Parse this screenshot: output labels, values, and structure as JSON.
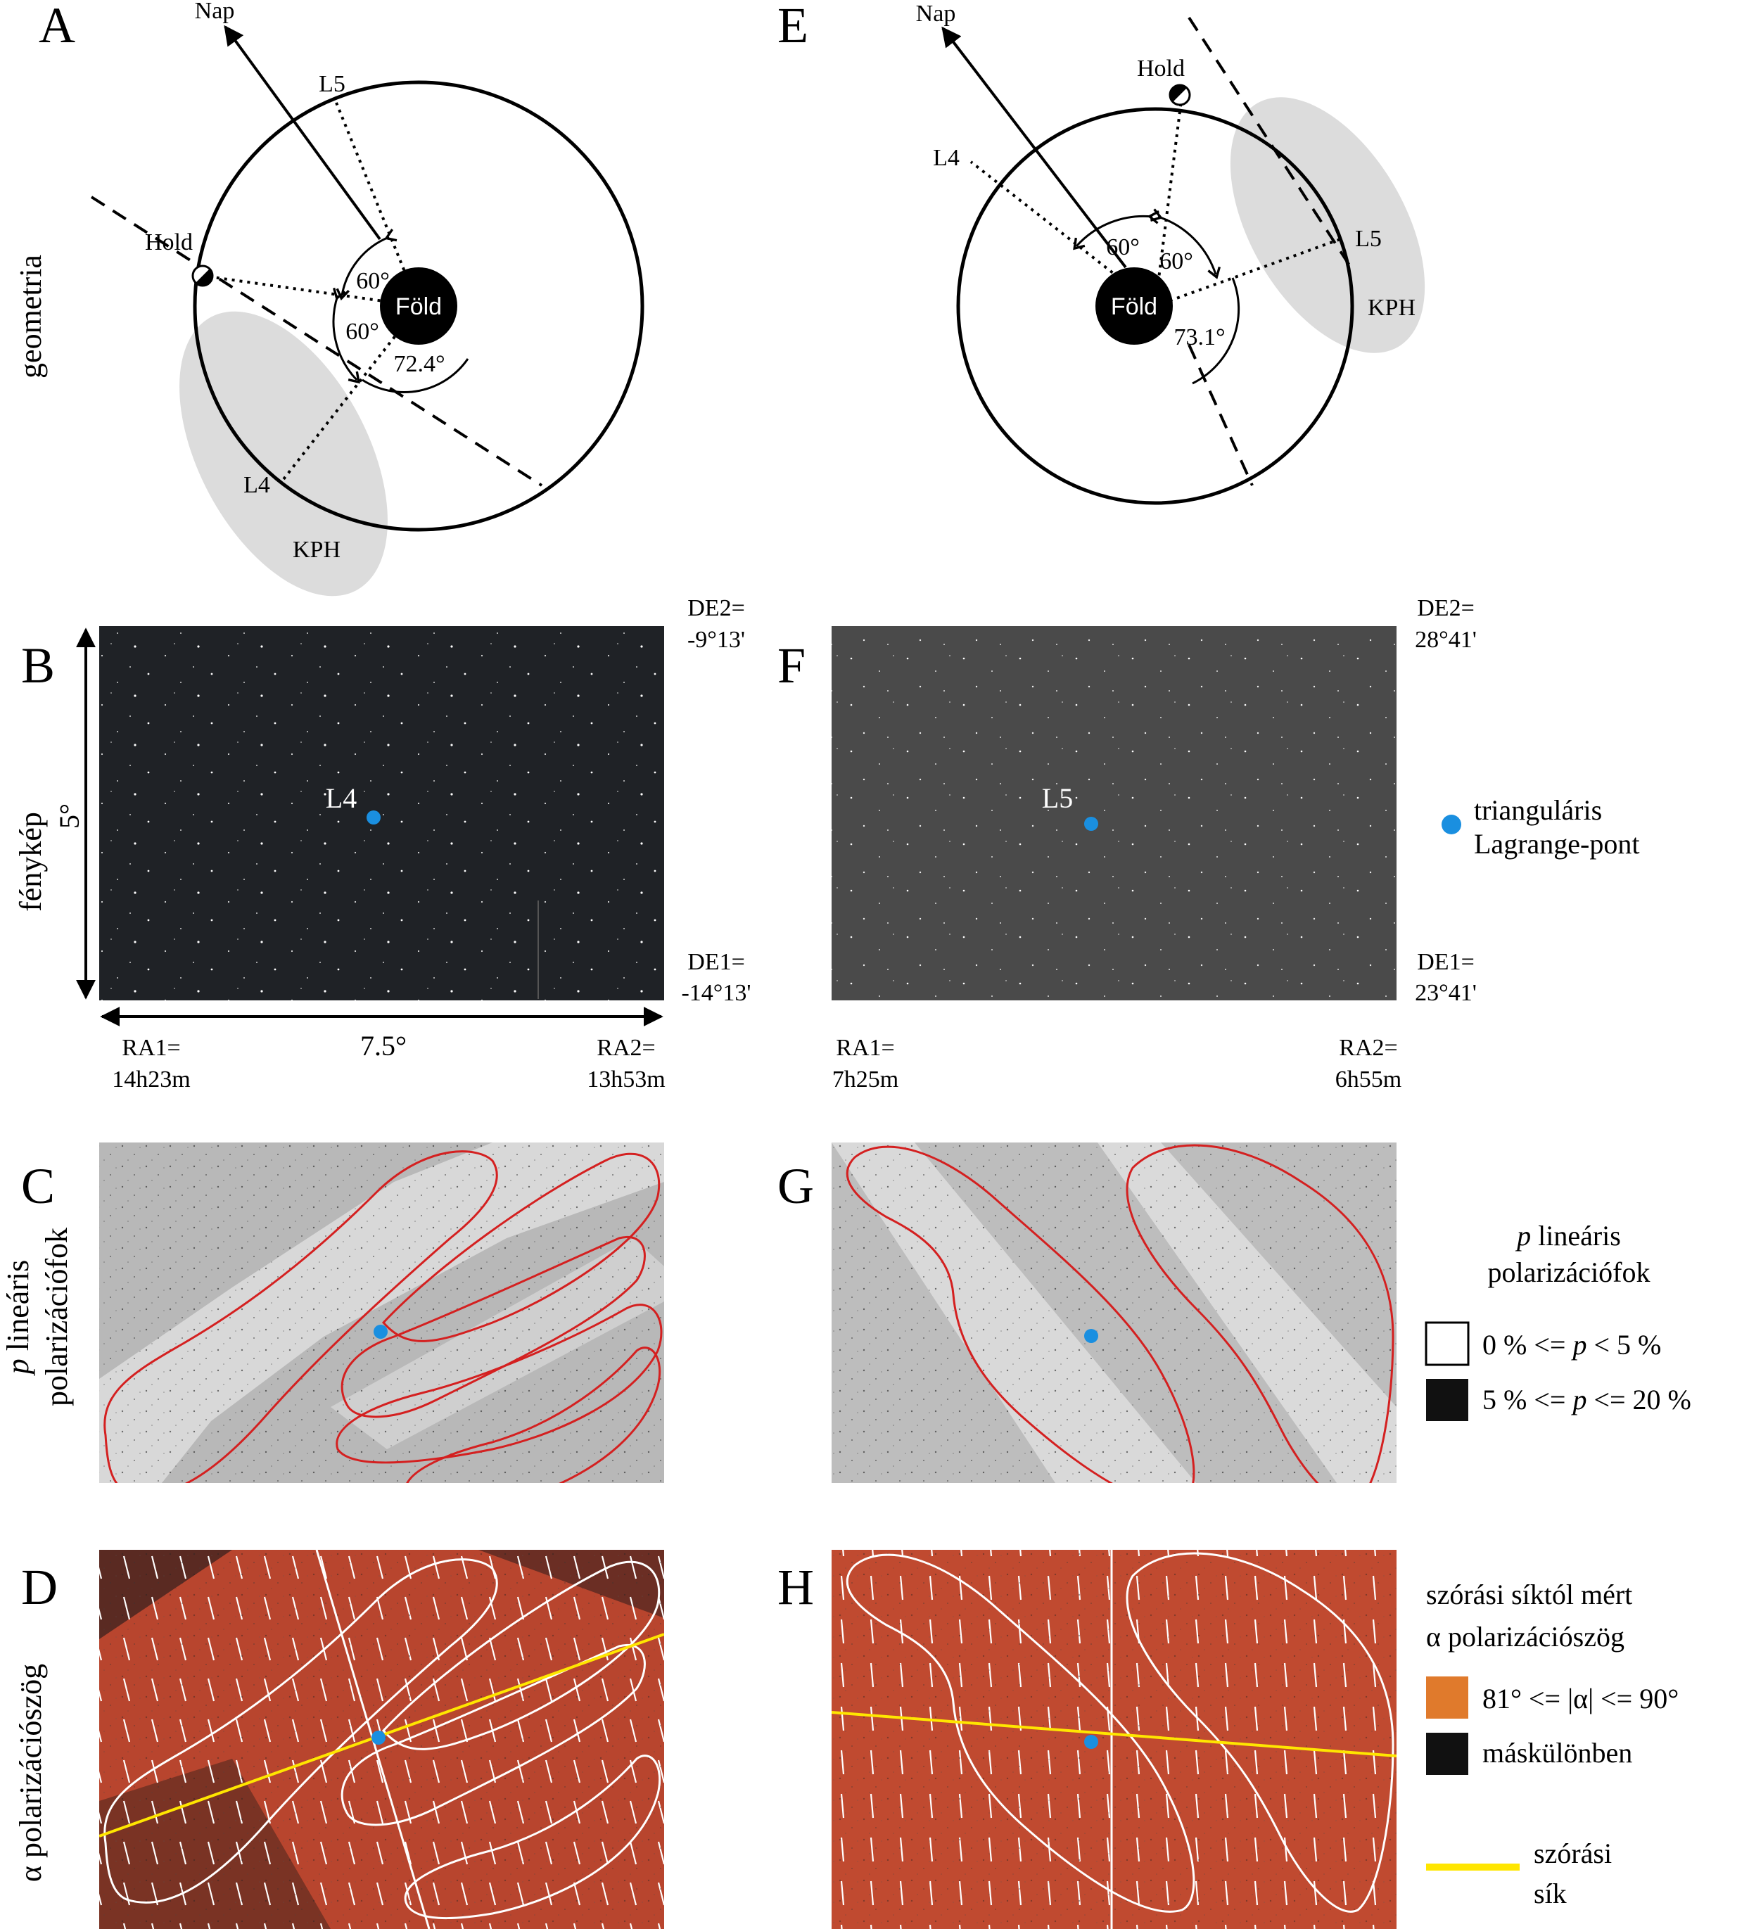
{
  "panel_letters": {
    "A": "A",
    "B": "B",
    "C": "C",
    "D": "D",
    "E": "E",
    "F": "F",
    "G": "G",
    "H": "H"
  },
  "row_labels": {
    "geometry": "geometria",
    "photo": "fénykép",
    "degree_p": "p",
    "degree_rest": " lineáris",
    "degree_line2": "polarizációfok",
    "angle_alpha": "α",
    "angle_rest": " polarizációszög"
  },
  "geometry_left": {
    "sun": "Nap",
    "moon": "Hold",
    "earth": "Föld",
    "l5": "L5",
    "l4": "L4",
    "kph": "KPH",
    "angle1": "60°",
    "angle2": "60°",
    "angle3": "72.4°"
  },
  "geometry_right": {
    "sun": "Nap",
    "moon": "Hold",
    "earth": "Föld",
    "l4": "L4",
    "l5": "L5",
    "kph": "KPH",
    "angle1": "60°",
    "angle2": "60°",
    "angle3": "73.1°"
  },
  "photo_left": {
    "point": "L4",
    "height": "5°",
    "width": "7.5°",
    "de2_label": "DE2=",
    "de2_value": "-9°13'",
    "de1_label": "DE1=",
    "de1_value": "-14°13'",
    "ra1_label": "RA1=",
    "ra1_value": "14h23m",
    "ra2_label": "RA2=",
    "ra2_value": "13h53m"
  },
  "photo_right": {
    "point": "L5",
    "de2_label": "DE2=",
    "de2_value": "28°41'",
    "de1_label": "DE1=",
    "de1_value": "23°41'",
    "ra1_label": "RA1=",
    "ra1_value": "7h25m",
    "ra2_label": "RA2=",
    "ra2_value": "6h55m"
  },
  "legends": {
    "lagrange_line1": "trianguláris",
    "lagrange_line2": "Lagrange-pont",
    "p_title_p": "p",
    "p_title_rest": " lineáris",
    "p_title_line2": "polarizációfok",
    "p_low_a": "0 % <= ",
    "p_low_p": "p",
    "p_low_b": " < 5 %",
    "p_high_a": "5 % <= ",
    "p_high_p": "p",
    "p_high_b": " <= 20 %",
    "alpha_title1": "szórási síktól mért",
    "alpha_title2": "α polarizációszög",
    "alpha_orange": "81° <= |α| <= 90°",
    "alpha_else": "máskülönben",
    "plane_line1": "szórási",
    "plane_line2": "sík"
  },
  "colors": {
    "lagrange_dot": "#1a8fe0",
    "contour_red": "#d42020",
    "plane_yellow": "#ffe600",
    "alpha_orange": "#e07a2c",
    "photo_dark": "#1f2226",
    "photo_gray": "#4a4a4a",
    "kph_gray": "#dcdcdc",
    "red_field": "#b8452e"
  }
}
